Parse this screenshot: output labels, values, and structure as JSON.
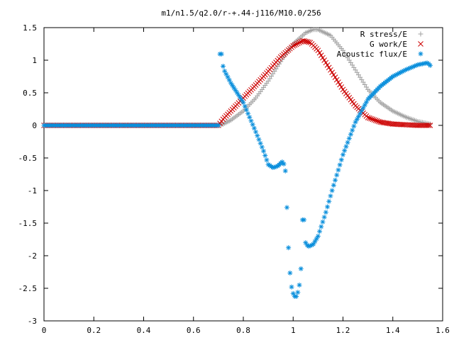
{
  "chart_data": {
    "type": "scatter",
    "title": "m1/n1.5/q2.0/r-+.44-j116/M10.0/256",
    "xlabel": "",
    "ylabel": "",
    "xlim": [
      0,
      1.6
    ],
    "ylim": [
      -3,
      1.5
    ],
    "x_ticks": [
      "0",
      "0.2",
      "0.4",
      "0.6",
      "0.8",
      "1",
      "1.2",
      "1.4",
      "1.6"
    ],
    "y_ticks": [
      "1.5",
      "1",
      "0.5",
      "0",
      "-0.5",
      "-1",
      "-1.5",
      "-2",
      "-2.5",
      "-3"
    ],
    "grid": false,
    "legend_position": "top-right",
    "series": [
      {
        "name": "R stress/E",
        "marker": "plus",
        "color": "#a0a0a0",
        "x": [
          0.0,
          0.1,
          0.2,
          0.3,
          0.4,
          0.5,
          0.6,
          0.7,
          0.72,
          0.75,
          0.8,
          0.85,
          0.9,
          0.95,
          1.0,
          1.05,
          1.08,
          1.1,
          1.15,
          1.2,
          1.25,
          1.3,
          1.35,
          1.4,
          1.45,
          1.5,
          1.55
        ],
        "y": [
          0,
          0,
          0,
          0,
          0,
          0,
          0,
          0,
          0.02,
          0.08,
          0.22,
          0.42,
          0.68,
          0.98,
          1.25,
          1.42,
          1.47,
          1.47,
          1.38,
          1.15,
          0.85,
          0.55,
          0.35,
          0.22,
          0.13,
          0.06,
          0.02
        ]
      },
      {
        "name": "G work/E",
        "marker": "cross",
        "color": "#cc0000",
        "x": [
          0.0,
          0.1,
          0.2,
          0.3,
          0.4,
          0.5,
          0.6,
          0.7,
          0.72,
          0.75,
          0.8,
          0.85,
          0.9,
          0.95,
          1.0,
          1.04,
          1.07,
          1.1,
          1.15,
          1.2,
          1.25,
          1.3,
          1.35,
          1.4,
          1.45,
          1.5,
          1.55
        ],
        "y": [
          0,
          0,
          0,
          0,
          0,
          0,
          0,
          0,
          0.1,
          0.22,
          0.42,
          0.62,
          0.83,
          1.05,
          1.22,
          1.3,
          1.27,
          1.15,
          0.85,
          0.55,
          0.3,
          0.12,
          0.05,
          0.02,
          0.01,
          0.0,
          0.0
        ]
      },
      {
        "name": "Acoustic flux/E",
        "marker": "star",
        "color": "#0a8fdc",
        "x": [
          0.0,
          0.1,
          0.2,
          0.3,
          0.4,
          0.5,
          0.6,
          0.7,
          0.705,
          0.71,
          0.72,
          0.75,
          0.8,
          0.85,
          0.88,
          0.9,
          0.92,
          0.94,
          0.95,
          0.96,
          0.97,
          0.98,
          0.99,
          1.0,
          1.01,
          1.015,
          1.02,
          1.03,
          1.04,
          1.045,
          1.05,
          1.06,
          1.08,
          1.1,
          1.13,
          1.16,
          1.2,
          1.25,
          1.3,
          1.35,
          1.4,
          1.45,
          1.5,
          1.54,
          1.55
        ],
        "y": [
          0,
          0,
          0,
          0,
          0,
          0,
          0,
          0,
          1.07,
          1.17,
          0.87,
          0.65,
          0.35,
          -0.1,
          -0.38,
          -0.6,
          -0.65,
          -0.62,
          -0.58,
          -0.55,
          -0.72,
          -1.8,
          -2.42,
          -2.58,
          -2.65,
          -2.6,
          -2.55,
          -2.35,
          -1.15,
          -1.55,
          -1.8,
          -1.86,
          -1.83,
          -1.7,
          -1.35,
          -0.95,
          -0.45,
          0.05,
          0.4,
          0.6,
          0.75,
          0.85,
          0.93,
          0.96,
          0.92
        ]
      }
    ]
  }
}
